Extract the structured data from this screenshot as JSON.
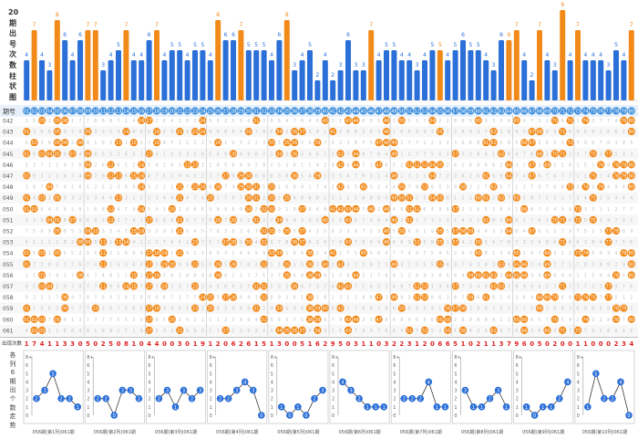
{
  "top_label": [
    "20",
    "期",
    "出",
    "号",
    "次",
    "数",
    "柱",
    "状",
    "图"
  ],
  "period_header": "期号",
  "sum_label": "出现次数",
  "mini_caption": [
    "各",
    "列",
    "6",
    "期",
    "出",
    "个",
    "数",
    "走",
    "势"
  ],
  "colors": {
    "orange": "#f28a1a",
    "blue": "#2b6fd8",
    "header_blue": "#3f8fdc",
    "grid_text": "#c4c4c4",
    "sum_red": "#d22"
  },
  "numbers": [
    "01",
    "02",
    "03",
    "04",
    "05",
    "06",
    "07",
    "08",
    "09",
    "10",
    "11",
    "12",
    "13",
    "14",
    "15",
    "16",
    "17",
    "18",
    "19",
    "20",
    "21",
    "22",
    "23",
    "24",
    "25",
    "26",
    "27",
    "28",
    "29",
    "30",
    "31",
    "32",
    "33",
    "34",
    "35",
    "36",
    "37",
    "38",
    "39",
    "40",
    "41",
    "42",
    "43",
    "44",
    "45",
    "46",
    "47",
    "48",
    "49",
    "50",
    "51",
    "52",
    "53",
    "54",
    "55",
    "56",
    "57",
    "58",
    "59",
    "60",
    "61",
    "62",
    "63",
    "64",
    "65",
    "66",
    "67",
    "68",
    "69",
    "70",
    "71",
    "72",
    "73",
    "74",
    "75",
    "76",
    "77",
    "78",
    "79",
    "80"
  ],
  "chart_data": {
    "type": "bar",
    "title": "20期出号次数柱状图",
    "categories": [
      "01",
      "02",
      "03",
      "04",
      "05",
      "06",
      "07",
      "08",
      "09",
      "10",
      "11",
      "12",
      "13",
      "14",
      "15",
      "16",
      "17",
      "18",
      "19",
      "20",
      "21",
      "22",
      "23",
      "24",
      "25",
      "26",
      "27",
      "28",
      "29",
      "30",
      "31",
      "32",
      "33",
      "34",
      "35",
      "36",
      "37",
      "38",
      "39",
      "40",
      "41",
      "42",
      "43",
      "44",
      "45",
      "46",
      "47",
      "48",
      "49",
      "50",
      "51",
      "52",
      "53",
      "54",
      "55",
      "56",
      "57",
      "58",
      "59",
      "60",
      "61",
      "62",
      "63",
      "64",
      "65",
      "66",
      "67",
      "68",
      "69",
      "70",
      "71",
      "72",
      "73",
      "74",
      "75",
      "76",
      "77",
      "78",
      "79",
      "80"
    ],
    "values": [
      4,
      7,
      4,
      3,
      8,
      6,
      4,
      6,
      7,
      7,
      3,
      4,
      5,
      7,
      4,
      4,
      6,
      7,
      4,
      5,
      5,
      4,
      5,
      5,
      4,
      8,
      6,
      6,
      7,
      5,
      5,
      5,
      4,
      6,
      8,
      3,
      4,
      5,
      2,
      4,
      2,
      3,
      6,
      3,
      3,
      7,
      4,
      5,
      5,
      4,
      4,
      3,
      4,
      5,
      5,
      4,
      5,
      6,
      5,
      5,
      4,
      3,
      6,
      6,
      7,
      4,
      2,
      7,
      4,
      3,
      9,
      4,
      7,
      4,
      4,
      4,
      3,
      5,
      4,
      7
    ],
    "highlight": [
      2,
      5,
      9,
      10,
      14,
      18,
      26,
      29,
      35,
      46,
      55,
      64,
      65,
      68,
      71,
      73,
      80
    ]
  },
  "periods": [
    "042",
    "043",
    "044",
    "045",
    "046",
    "047",
    "048",
    "049",
    "050",
    "051",
    "052",
    "053",
    "054",
    "055",
    "056",
    "057",
    "058",
    "059",
    "060",
    "061"
  ],
  "sums": [
    "1",
    "7",
    "4",
    "1",
    "1",
    "3",
    "3",
    "0",
    "5",
    "0",
    "2",
    "5",
    "0",
    "8",
    "1",
    "0",
    "4",
    "4",
    "0",
    "0",
    "3",
    "0",
    "1",
    "9",
    "1",
    "2",
    "0",
    "6",
    "2",
    "6",
    "1",
    "5",
    "1",
    "3",
    "0",
    "0",
    "5",
    "1",
    "6",
    "2",
    "9",
    "5",
    "0",
    "3",
    "1",
    "1",
    "0",
    "3",
    "2",
    "2",
    "3",
    "1",
    "2",
    "0",
    "6",
    "6",
    "5",
    "1",
    "0",
    "2",
    "1",
    "1",
    "3",
    "7",
    "9",
    "6",
    "0",
    "5",
    "0",
    "2",
    "0",
    "0",
    "1",
    "1",
    "0",
    "0",
    "0",
    "2",
    "3",
    "4"
  ],
  "mini_charts": [
    {
      "values": [
        2,
        3,
        5,
        2,
        2,
        1
      ],
      "range": "056期(第1列)061期"
    },
    {
      "values": [
        2,
        2,
        0,
        3,
        3,
        2
      ],
      "range": "056期(第2列)061期"
    },
    {
      "values": [
        2,
        3,
        1,
        3,
        2,
        3
      ],
      "range": "056期(第3列)061期"
    },
    {
      "values": [
        2,
        2,
        3,
        4,
        3,
        0
      ],
      "range": "056期(第4列)061期"
    },
    {
      "values": [
        1,
        0,
        1,
        0,
        2,
        3
      ],
      "range": "056期(第5列)061期"
    },
    {
      "values": [
        4,
        3,
        2,
        1,
        1,
        1
      ],
      "range": "056期(第6列)061期"
    },
    {
      "values": [
        2,
        2,
        2,
        4,
        1,
        1
      ],
      "range": "056期(第7列)061期"
    },
    {
      "values": [
        3,
        1,
        1,
        2,
        3,
        1
      ],
      "range": "056期(第8列)061期"
    },
    {
      "values": [
        1,
        0,
        1,
        1,
        2,
        4
      ],
      "range": "056期(第9列)061期"
    },
    {
      "values": [
        1,
        5,
        2,
        2,
        4,
        0
      ],
      "range": "056期(第10列)061期"
    }
  ],
  "mini_axis": [
    "8+",
    "6",
    "5",
    "4",
    "3",
    "2",
    "1",
    "0"
  ]
}
